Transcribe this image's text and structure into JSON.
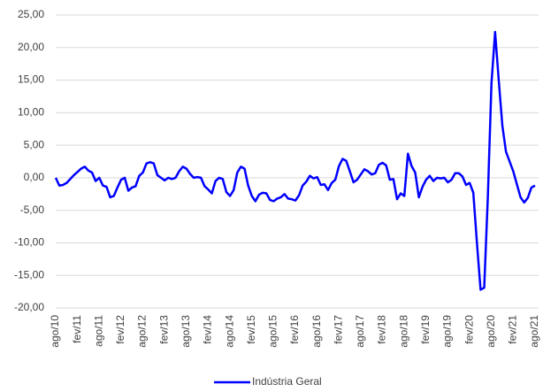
{
  "chart_data": {
    "type": "line",
    "categories": [
      "ago/10",
      null,
      null,
      null,
      null,
      null,
      "fev/11",
      null,
      null,
      null,
      null,
      null,
      "ago/11",
      null,
      null,
      null,
      null,
      null,
      "fev/12",
      null,
      null,
      null,
      null,
      null,
      "ago/12",
      null,
      null,
      null,
      null,
      null,
      "fev/13",
      null,
      null,
      null,
      null,
      null,
      "ago/13",
      null,
      null,
      null,
      null,
      null,
      "fev/14",
      null,
      null,
      null,
      null,
      null,
      "ago/14",
      null,
      null,
      null,
      null,
      null,
      "fev/15",
      null,
      null,
      null,
      null,
      null,
      "ago/15",
      null,
      null,
      null,
      null,
      null,
      "fev/16",
      null,
      null,
      null,
      null,
      null,
      "ago/16",
      null,
      null,
      null,
      null,
      null,
      "fev/17",
      null,
      null,
      null,
      null,
      null,
      "ago/17",
      null,
      null,
      null,
      null,
      null,
      "fev/18",
      null,
      null,
      null,
      null,
      null,
      "ago/18",
      null,
      null,
      null,
      null,
      null,
      "fev/19",
      null,
      null,
      null,
      null,
      null,
      "ago/19",
      null,
      null,
      null,
      null,
      null,
      "fev/20",
      null,
      null,
      null,
      null,
      null,
      "ago/20",
      null,
      null,
      null,
      null,
      null,
      "fev/21",
      null,
      null,
      null,
      null,
      null,
      "ago/21"
    ],
    "series": [
      {
        "name": "Indústria Geral",
        "color": "#0000ff",
        "values": [
          0,
          -1.2,
          -1.1,
          -0.8,
          -0.2,
          0.4,
          0.9,
          1.4,
          1.7,
          1.1,
          0.8,
          -0.5,
          0,
          -1.2,
          -1.4,
          -3,
          -2.8,
          -1.5,
          -0.3,
          0,
          -2,
          -1.5,
          -1.3,
          0.3,
          0.8,
          2.2,
          2.4,
          2.2,
          0.4,
          0,
          -0.4,
          0,
          -0.2,
          0,
          1,
          1.7,
          1.4,
          0.6,
          0,
          0.1,
          0,
          -1.3,
          -1.8,
          -2.4,
          -0.5,
          0,
          -0.2,
          -2.2,
          -2.8,
          -1.9,
          0.8,
          1.7,
          1.4,
          -1.2,
          -2.8,
          -3.6,
          -2.6,
          -2.3,
          -2.4,
          -3.4,
          -3.6,
          -3.2,
          -3,
          -2.5,
          -3.2,
          -3.3,
          -3.5,
          -2.7,
          -1.2,
          -0.6,
          0.3,
          -0.1,
          0.1,
          -1.1,
          -1,
          -1.9,
          -0.8,
          -0.3,
          1.8,
          2.9,
          2.6,
          1,
          -0.7,
          -0.3,
          0.5,
          1.3,
          1,
          0.5,
          0.7,
          2,
          2.3,
          1.9,
          -0.3,
          -0.2,
          -3.3,
          -2.4,
          -2.8,
          3.7,
          1.8,
          0.8,
          -3,
          -1.4,
          -0.3,
          0.3,
          -0.5,
          0,
          -0.1,
          0,
          -0.7,
          -0.3,
          0.7,
          0.7,
          0.2,
          -1.1,
          -0.8,
          -2.3,
          -10,
          -17.2,
          -16.9,
          -3,
          14.5,
          22.4,
          15,
          8,
          4,
          2.5,
          1,
          -1,
          -3,
          -3.8,
          -3.1,
          -1.5,
          -1.2
        ]
      }
    ],
    "ylim": [
      -20,
      25
    ],
    "yticks": [
      {
        "value": -20,
        "label": "-20,00"
      },
      {
        "value": -15,
        "label": "-15,00"
      },
      {
        "value": -10,
        "label": "-10,00"
      },
      {
        "value": -5,
        "label": "-5,00"
      },
      {
        "value": 0,
        "label": "0,00"
      },
      {
        "value": 5,
        "label": "5,00"
      },
      {
        "value": 10,
        "label": "10,00"
      },
      {
        "value": 15,
        "label": "15,00"
      },
      {
        "value": 20,
        "label": "20,00"
      },
      {
        "value": 25,
        "label": "25,00"
      }
    ],
    "grid": true,
    "legend": "bottom"
  }
}
